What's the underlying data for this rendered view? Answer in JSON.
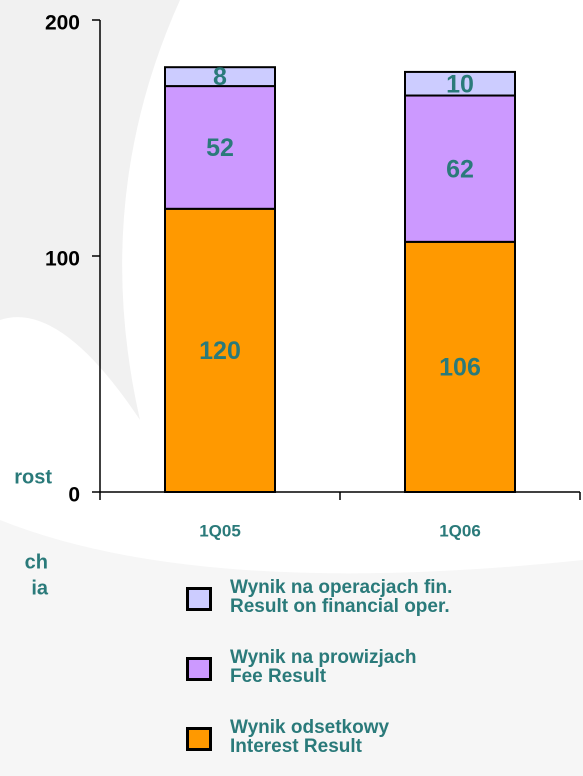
{
  "chart_data": {
    "type": "stacked_bar",
    "categories": [
      "1Q05",
      "1Q06"
    ],
    "series": [
      {
        "name": "Wynik odsetkowy\nInterest Result",
        "color": "#ff9900",
        "values": [
          120,
          106
        ]
      },
      {
        "name": "Wynik na prowizjach\nFee Result",
        "color": "#cc99ff",
        "values": [
          52,
          62
        ]
      },
      {
        "name": "Wynik na operacjach fin.\nResult on financial oper.",
        "color": "#ccccff",
        "values": [
          8,
          10
        ]
      }
    ],
    "ylim": [
      0,
      200
    ],
    "yticks": [
      0,
      100,
      200
    ],
    "annotations": [
      "rost",
      "ch",
      "ia"
    ]
  }
}
